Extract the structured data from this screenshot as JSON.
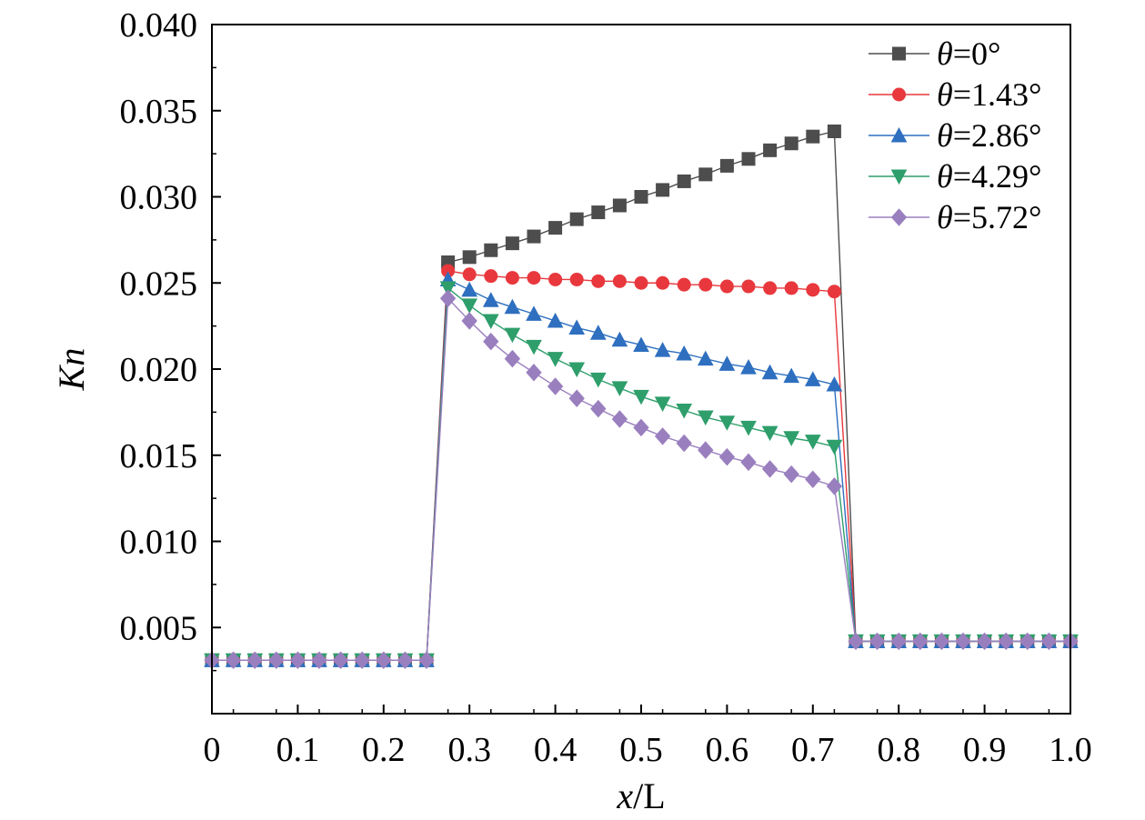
{
  "chart_data": {
    "type": "line",
    "xlabel_italic": "x",
    "xlabel_rest": "/L",
    "ylabel": "Kn",
    "xlim": [
      0,
      1.0
    ],
    "ylim": [
      0,
      0.04
    ],
    "xticks": [
      "0",
      "0.1",
      "0.2",
      "0.3",
      "0.4",
      "0.5",
      "0.6",
      "0.7",
      "0.8",
      "0.9",
      "1.0"
    ],
    "yticks": [
      "0.005",
      "0.010",
      "0.015",
      "0.020",
      "0.025",
      "0.030",
      "0.035",
      "0.040"
    ],
    "legend_position": "top-right",
    "series": [
      {
        "name": "=0°",
        "symbol": "θ",
        "color": "#4d4d4d",
        "marker": "square",
        "x": [
          0,
          0.025,
          0.05,
          0.075,
          0.1,
          0.125,
          0.15,
          0.175,
          0.2,
          0.225,
          0.25,
          0.275,
          0.3,
          0.325,
          0.35,
          0.375,
          0.4,
          0.425,
          0.45,
          0.475,
          0.5,
          0.525,
          0.55,
          0.575,
          0.6,
          0.625,
          0.65,
          0.675,
          0.7,
          0.725,
          0.75,
          0.775,
          0.8,
          0.825,
          0.85,
          0.875,
          0.9,
          0.925,
          0.95,
          0.975,
          1.0
        ],
        "y": [
          0.0031,
          0.0031,
          0.0031,
          0.0031,
          0.0031,
          0.0031,
          0.0031,
          0.0031,
          0.0031,
          0.0031,
          0.0031,
          0.0262,
          0.0265,
          0.0269,
          0.0273,
          0.0277,
          0.0282,
          0.0287,
          0.0291,
          0.0295,
          0.03,
          0.0304,
          0.0309,
          0.0313,
          0.0318,
          0.0322,
          0.0327,
          0.0331,
          0.0335,
          0.0338,
          0.0042,
          0.0042,
          0.0042,
          0.0042,
          0.0042,
          0.0042,
          0.0042,
          0.0042,
          0.0042,
          0.0042,
          0.0042
        ]
      },
      {
        "name": "=1.43°",
        "symbol": "θ",
        "color": "#e8383d",
        "marker": "circle",
        "x": [
          0,
          0.025,
          0.05,
          0.075,
          0.1,
          0.125,
          0.15,
          0.175,
          0.2,
          0.225,
          0.25,
          0.275,
          0.3,
          0.325,
          0.35,
          0.375,
          0.4,
          0.425,
          0.45,
          0.475,
          0.5,
          0.525,
          0.55,
          0.575,
          0.6,
          0.625,
          0.65,
          0.675,
          0.7,
          0.725,
          0.75,
          0.775,
          0.8,
          0.825,
          0.85,
          0.875,
          0.9,
          0.925,
          0.95,
          0.975,
          1.0
        ],
        "y": [
          0.0031,
          0.0031,
          0.0031,
          0.0031,
          0.0031,
          0.0031,
          0.0031,
          0.0031,
          0.0031,
          0.0031,
          0.0031,
          0.0257,
          0.0255,
          0.0254,
          0.0253,
          0.0253,
          0.0252,
          0.0252,
          0.0251,
          0.0251,
          0.025,
          0.025,
          0.0249,
          0.0249,
          0.0248,
          0.0248,
          0.0247,
          0.0247,
          0.0246,
          0.0245,
          0.0042,
          0.0042,
          0.0042,
          0.0042,
          0.0042,
          0.0042,
          0.0042,
          0.0042,
          0.0042,
          0.0042,
          0.0042
        ]
      },
      {
        "name": "=2.86°",
        "symbol": "θ",
        "color": "#2e6fbf",
        "marker": "triangle-up",
        "x": [
          0,
          0.025,
          0.05,
          0.075,
          0.1,
          0.125,
          0.15,
          0.175,
          0.2,
          0.225,
          0.25,
          0.275,
          0.3,
          0.325,
          0.35,
          0.375,
          0.4,
          0.425,
          0.45,
          0.475,
          0.5,
          0.525,
          0.55,
          0.575,
          0.6,
          0.625,
          0.65,
          0.675,
          0.7,
          0.725,
          0.75,
          0.775,
          0.8,
          0.825,
          0.85,
          0.875,
          0.9,
          0.925,
          0.95,
          0.975,
          1.0
        ],
        "y": [
          0.0031,
          0.0031,
          0.0031,
          0.0031,
          0.0031,
          0.0031,
          0.0031,
          0.0031,
          0.0031,
          0.0031,
          0.0031,
          0.0252,
          0.0246,
          0.024,
          0.0236,
          0.0232,
          0.0228,
          0.0224,
          0.0221,
          0.0217,
          0.0214,
          0.0211,
          0.0209,
          0.0206,
          0.0203,
          0.0201,
          0.0198,
          0.0196,
          0.0194,
          0.0191,
          0.0042,
          0.0042,
          0.0042,
          0.0042,
          0.0042,
          0.0042,
          0.0042,
          0.0042,
          0.0042,
          0.0042,
          0.0042
        ]
      },
      {
        "name": "=4.29°",
        "symbol": "θ",
        "color": "#2e9e6b",
        "marker": "triangle-down",
        "x": [
          0,
          0.025,
          0.05,
          0.075,
          0.1,
          0.125,
          0.15,
          0.175,
          0.2,
          0.225,
          0.25,
          0.275,
          0.3,
          0.325,
          0.35,
          0.375,
          0.4,
          0.425,
          0.45,
          0.475,
          0.5,
          0.525,
          0.55,
          0.575,
          0.6,
          0.625,
          0.65,
          0.675,
          0.7,
          0.725,
          0.75,
          0.775,
          0.8,
          0.825,
          0.85,
          0.875,
          0.9,
          0.925,
          0.95,
          0.975,
          1.0
        ],
        "y": [
          0.0031,
          0.0031,
          0.0031,
          0.0031,
          0.0031,
          0.0031,
          0.0031,
          0.0031,
          0.0031,
          0.0031,
          0.0031,
          0.0247,
          0.0237,
          0.0228,
          0.022,
          0.0213,
          0.0206,
          0.02,
          0.0194,
          0.0189,
          0.0184,
          0.018,
          0.0176,
          0.0172,
          0.0169,
          0.0166,
          0.0163,
          0.016,
          0.0158,
          0.0155,
          0.0042,
          0.0042,
          0.0042,
          0.0042,
          0.0042,
          0.0042,
          0.0042,
          0.0042,
          0.0042,
          0.0042,
          0.0042
        ]
      },
      {
        "name": "=5.72°",
        "symbol": "θ",
        "color": "#9a7fbf",
        "marker": "diamond",
        "x": [
          0,
          0.025,
          0.05,
          0.075,
          0.1,
          0.125,
          0.15,
          0.175,
          0.2,
          0.225,
          0.25,
          0.275,
          0.3,
          0.325,
          0.35,
          0.375,
          0.4,
          0.425,
          0.45,
          0.475,
          0.5,
          0.525,
          0.55,
          0.575,
          0.6,
          0.625,
          0.65,
          0.675,
          0.7,
          0.725,
          0.75,
          0.775,
          0.8,
          0.825,
          0.85,
          0.875,
          0.9,
          0.925,
          0.95,
          0.975,
          1.0
        ],
        "y": [
          0.0031,
          0.0031,
          0.0031,
          0.0031,
          0.0031,
          0.0031,
          0.0031,
          0.0031,
          0.0031,
          0.0031,
          0.0031,
          0.0241,
          0.0228,
          0.0216,
          0.0206,
          0.0198,
          0.019,
          0.0183,
          0.0177,
          0.0171,
          0.0166,
          0.0161,
          0.0157,
          0.0153,
          0.0149,
          0.0146,
          0.0142,
          0.0139,
          0.0136,
          0.0132,
          0.0042,
          0.0042,
          0.0042,
          0.0042,
          0.0042,
          0.0042,
          0.0042,
          0.0042,
          0.0042,
          0.0042,
          0.0042
        ]
      }
    ]
  }
}
